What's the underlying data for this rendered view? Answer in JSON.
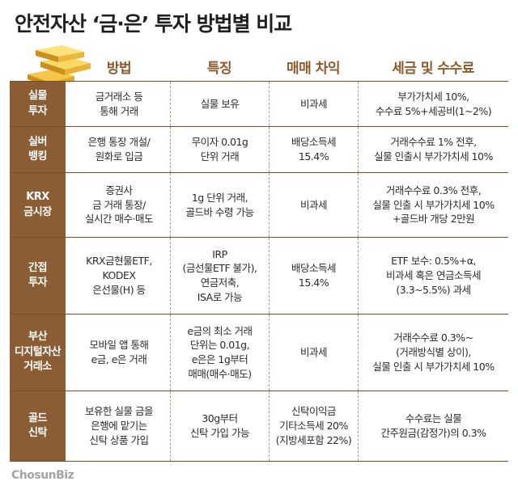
{
  "title": "안전자산 ‘금·은’ 투자 방법별 비교",
  "headers": [
    "방법",
    "특징",
    "매매 차익",
    "세금 및 수수료"
  ],
  "rows": [
    {
      "label": "실물\n투자",
      "method": "금거래소 등\n통해 거래",
      "feature": "실물 보유",
      "gain": "비과세",
      "tax": "부가가치세 10%,\n수수료 5%+세공비(1~2%)"
    },
    {
      "label": "실버\n뱅킹",
      "method": "은행 통장 개설/\n원화로 입금",
      "feature": "무이자 0.01g\n단위 거래",
      "gain": "배당소득세\n15.4%",
      "tax": "거래수수료 1% 전후,\n실물 인출시 부가가치세 10%"
    },
    {
      "label": "KRX\n금시장",
      "method": "증권사\n금 거래 통장/\n실시간 매수·매도",
      "feature": "1g 단위 거래,\n골드바 수령 가능",
      "gain": "비과세",
      "tax": "거래수수료 0.3% 전후,\n실물 인출 시 부가가치세 10%\n+골드바 개당 2만원"
    },
    {
      "label": "간접\n투자",
      "method": "KRX금현물ETF,\nKODEX\n은선물(H) 등",
      "feature": "IRP\n(금선물ETF 불가),\n연금저축,\nISA로 가능",
      "gain": "배당소득세\n15.4%",
      "tax": "ETF 보수: 0.5%+α,\n비과세 혹은 연금소득세\n(3.3~5.5%) 과세"
    },
    {
      "label": "부산\n디지털자산\n거래소",
      "method": "모바일 앱 통해\ne금, e은 거래",
      "feature": "e금의 최소 거래\n단위는 0.01g,\ne은은 1g부터\n매매(매수·매도)",
      "gain": "비과세",
      "tax": "거래수수료 0.3%~\n(거래방식별 상이),\n실물 인출 시 부가가치세 10%"
    },
    {
      "label": "골드\n신탁",
      "method": "보유한 실물 금을\n은행에 맡기는\n신탁 상품 가입",
      "feature": "30g부터\n신탁 가입 가능",
      "gain": "신탁이익금\n기타소득세 20%\n(지방세포함 22%)",
      "tax": "수수료는 실물\n간주원금(감정가)의 0.3%"
    }
  ],
  "source_logo": "ChosunBiz",
  "colors": {
    "label_bg": "#8a5d34",
    "header_text": "#8c5a2b"
  }
}
